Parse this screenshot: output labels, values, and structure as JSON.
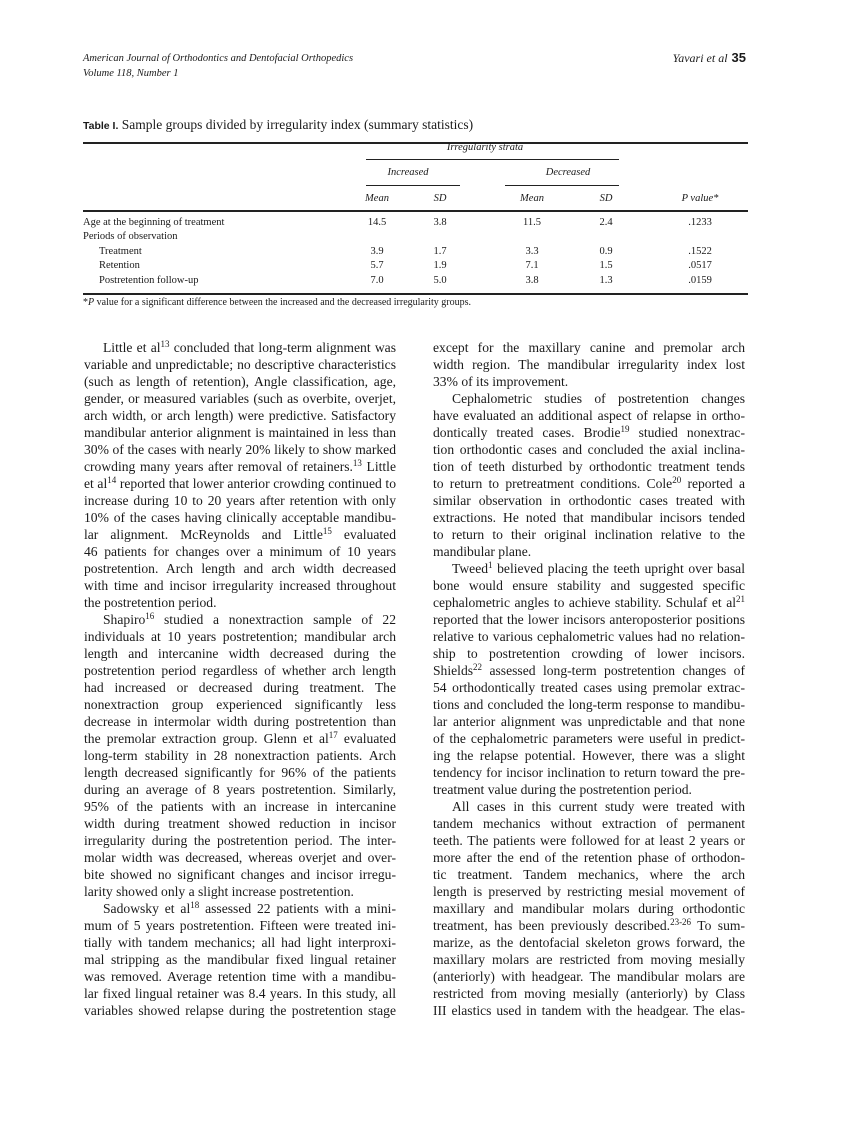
{
  "header": {
    "journal": "American Journal of Orthodontics and Dentofacial Orthopedics",
    "volume": "Volume 118, Number 1",
    "authors": "Yavari et al",
    "page": "35"
  },
  "table": {
    "label": "Table I.",
    "title": "Sample groups divided by irregularity index (summary statistics)",
    "spanner": "Irregularity strata",
    "groups": [
      "Increased",
      "Decreased"
    ],
    "subheaders": [
      "Mean",
      "SD",
      "Mean",
      "SD",
      "P value*"
    ],
    "rows": [
      {
        "label": "Age at the beginning of treatment",
        "indent": false,
        "values": [
          "14.5",
          "3.8",
          "11.5",
          "2.4",
          ".1233"
        ]
      },
      {
        "label": "Periods of observation",
        "indent": false,
        "values": []
      },
      {
        "label": "Treatment",
        "indent": true,
        "values": [
          "3.9",
          "1.7",
          "3.3",
          "0.9",
          ".1522"
        ]
      },
      {
        "label": "Retention",
        "indent": true,
        "values": [
          "5.7",
          "1.9",
          "7.1",
          "1.5",
          ".0517"
        ]
      },
      {
        "label": "Postretention follow-up",
        "indent": true,
        "values": [
          "7.0",
          "5.0",
          "3.8",
          "1.3",
          ".0159"
        ]
      }
    ],
    "footnote_mark": "*",
    "footnote_p": "P",
    "footnote": " value for a significant difference between the increased and the decreased irregularity groups."
  },
  "body": {
    "left": [
      [
        [
          "Little et al",
          {
            "sup": "13"
          },
          " concluded that long-term alignment was"
        ],
        [
          "variable and unpredictable; no descriptive characteristics"
        ],
        [
          "(such as length of retention), Angle classification, age,"
        ],
        [
          "gender, or measured variables (such as overbite, overjet,"
        ],
        [
          "arch width, or arch length) were predictive. Satisfactory"
        ],
        [
          "mandibular anterior alignment is maintained in less than"
        ],
        [
          "30% of the cases with nearly 20% likely to show marked"
        ],
        [
          "crowding many years after removal of retainers.",
          {
            "sup": "13"
          },
          " Little"
        ],
        [
          "et al",
          {
            "sup": "14"
          },
          " reported that lower anterior crowding continued to"
        ],
        [
          "increase during 10 to 20 years after retention with only"
        ],
        [
          "10% of the cases having clinically acceptable mandibu-"
        ],
        [
          "lar alignment. McReynolds and Little",
          {
            "sup": "15"
          },
          " evaluated"
        ],
        [
          "46 patients for changes over a minimum of 10 years"
        ],
        [
          "postretention. Arch length and arch width decreased"
        ],
        [
          "with time and incisor irregularity increased throughout"
        ],
        [
          "the postretention period."
        ]
      ],
      [
        [
          "Shapiro",
          {
            "sup": "16"
          },
          " studied a nonextraction sample of 22"
        ],
        [
          "individuals at 10 years postretention; mandibular arch"
        ],
        [
          "length and intercanine width decreased during the"
        ],
        [
          "postretention period regardless of whether arch length"
        ],
        [
          "had increased or decreased during treatment. The"
        ],
        [
          "nonextraction group experienced significantly less"
        ],
        [
          "decrease in intermolar width during postretention than"
        ],
        [
          "the premolar extraction group. Glenn et al",
          {
            "sup": "17"
          },
          " evaluated"
        ],
        [
          "long-term stability in 28 nonextraction patients. Arch"
        ],
        [
          "length decreased significantly for 96% of the patients"
        ],
        [
          "during an average of 8 years postretention. Similarly,"
        ],
        [
          "95% of the patients with an increase in intercanine"
        ],
        [
          "width during treatment showed reduction in incisor"
        ],
        [
          "irregularity during the postretention period. The inter-"
        ],
        [
          "molar width was decreased, whereas overjet and over-"
        ],
        [
          "bite showed no significant changes and incisor irregu-"
        ],
        [
          "larity showed only a slight increase postretention."
        ]
      ],
      [
        [
          "Sadowsky et al",
          {
            "sup": "18"
          },
          " assessed 22 patients with a mini-"
        ],
        [
          "mum of 5 years postretention. Fifteen were treated ini-"
        ],
        [
          "tially with tandem mechanics; all had light interproxi-"
        ],
        [
          "mal stripping as the mandibular fixed lingual retainer"
        ],
        [
          "was removed. Average retention time with a mandibu-"
        ],
        [
          "lar fixed lingual retainer was 8.4 years. In this study, all"
        ],
        [
          "variables showed relapse during the postretention stage"
        ]
      ]
    ],
    "right": [
      [
        [
          "except for the maxillary canine and premolar arch"
        ],
        [
          "width region. The mandibular irregularity index lost"
        ],
        [
          "33% of its improvement."
        ]
      ],
      [
        [
          "Cephalometric studies of postretention changes"
        ],
        [
          "have evaluated an additional aspect of relapse in ortho-"
        ],
        [
          "dontically treated cases. Brodie",
          {
            "sup": "19"
          },
          " studied nonextrac-"
        ],
        [
          "tion orthodontic cases and concluded the axial inclina-"
        ],
        [
          "tion of teeth disturbed by orthodontic treatment tends"
        ],
        [
          "to return to pretreatment conditions. Cole",
          {
            "sup": "20"
          },
          " reported a"
        ],
        [
          "similar observation in orthodontic cases treated with"
        ],
        [
          "extractions. He noted that mandibular incisors tended"
        ],
        [
          "to return to their original inclination relative to the"
        ],
        [
          "mandibular plane."
        ]
      ],
      [
        [
          "Tweed",
          {
            "sup": "1"
          },
          " believed placing the teeth upright over basal"
        ],
        [
          "bone would ensure stability and suggested specific"
        ],
        [
          "cephalometric angles to achieve stability. Schulaf et al",
          {
            "sup": "21"
          }
        ],
        [
          "reported that the lower incisors anteroposterior positions"
        ],
        [
          "relative to various cephalometric values had no relation-"
        ],
        [
          "ship to postretention crowding of lower incisors."
        ],
        [
          "Shields",
          {
            "sup": "22"
          },
          " assessed long-term postretention changes of"
        ],
        [
          "54 orthodontically treated cases using premolar extrac-"
        ],
        [
          "tions and concluded the long-term response to mandibu-"
        ],
        [
          "lar anterior alignment was unpredictable and that none"
        ],
        [
          "of the cephalometric parameters were useful in predict-"
        ],
        [
          "ing the relapse potential. However, there was a slight"
        ],
        [
          "tendency for incisor inclination to return toward the pre-"
        ],
        [
          "treatment value during the postretention period."
        ]
      ],
      [
        [
          "All cases in this current study were treated with"
        ],
        [
          "tandem mechanics without extraction of permanent"
        ],
        [
          "teeth. The patients were followed for at least 2 years or"
        ],
        [
          "more after the end of the retention phase of orthodon-"
        ],
        [
          "tic treatment. Tandem mechanics, where the arch"
        ],
        [
          "length is preserved by restricting mesial movement of"
        ],
        [
          "maxillary and mandibular molars during orthodontic"
        ],
        [
          "treatment, has been previously described.",
          {
            "sup": "23-26"
          },
          " To sum-"
        ],
        [
          "marize, as the dentofacial skeleton grows forward, the"
        ],
        [
          "maxillary molars are restricted from moving mesially"
        ],
        [
          "(anteriorly) with headgear. The mandibular molars are"
        ],
        [
          "restricted from moving mesially (anteriorly) by Class"
        ],
        [
          "III elastics used in tandem with the headgear. The elas-"
        ]
      ]
    ]
  }
}
